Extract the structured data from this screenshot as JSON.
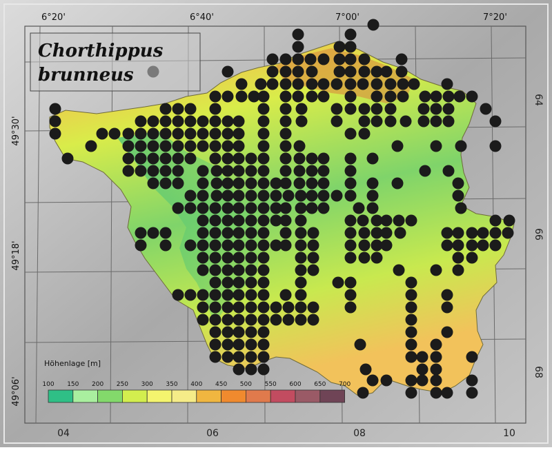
{
  "title": {
    "line1": "Chorthippus",
    "line2": "brunneus"
  },
  "axes": {
    "lon_labels": [
      "6°20'",
      "6°40'",
      "7°00'",
      "7°20'"
    ],
    "lat_labels": [
      "49°30'",
      "49°18'",
      "49°06'"
    ],
    "grid_bottom": [
      "04",
      "06",
      "08",
      "10"
    ],
    "grid_right": [
      "64",
      "66",
      "68"
    ]
  },
  "legend": {
    "title": "Höhenlage [m]",
    "ticks": [
      "100",
      "150",
      "200",
      "250",
      "300",
      "350",
      "400",
      "450",
      "500",
      "550",
      "600",
      "650",
      "700"
    ],
    "colors": [
      "#2fbf86",
      "#a9ef9f",
      "#83d96b",
      "#d3ee4e",
      "#f4f46e",
      "#f5ec88",
      "#f0b640",
      "#f08a2e",
      "#e07a4c",
      "#c24c60",
      "#9a5a66",
      "#6f4456"
    ]
  },
  "colors": {
    "dot": "#1b1b1b",
    "background": "#9a9a9a",
    "frame": "#c8c8c8"
  }
}
